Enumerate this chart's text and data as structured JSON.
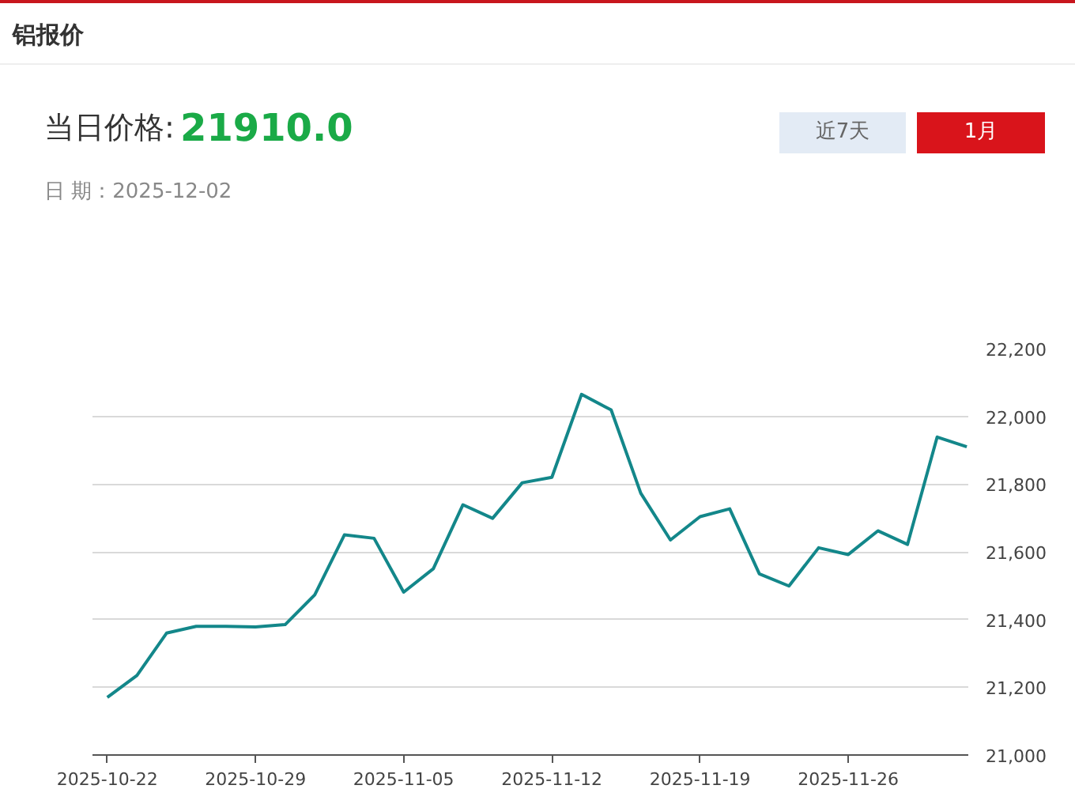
{
  "chart_data": {
    "type": "line",
    "title": "铝报价",
    "annotations": [
      "当日价格:",
      "21910.0",
      "日 期：2025-12-02",
      "近7天",
      "1月"
    ],
    "categories": [
      "2025-10-22",
      null,
      null,
      null,
      null,
      "2025-10-29",
      null,
      null,
      null,
      null,
      "2025-11-05",
      null,
      null,
      null,
      null,
      "2025-11-12",
      null,
      null,
      null,
      null,
      "2025-11-19",
      null,
      null,
      null,
      null,
      "2025-11-26",
      null,
      null,
      null,
      null
    ],
    "series": [
      {
        "color": "#13878a",
        "values": [
          21170,
          21235,
          21360,
          21380,
          21380,
          21378,
          21385,
          21473,
          21650,
          21640,
          21481,
          21550,
          21739,
          21699,
          21804,
          21820,
          22065,
          22019,
          21773,
          21635,
          21704,
          21727,
          21535,
          21499,
          21612,
          21592,
          21662,
          21622,
          21939,
          21910
        ]
      }
    ],
    "ylim": [
      21000,
      22200
    ],
    "yticks": [
      {
        "value": 21000,
        "label": "21,000"
      },
      {
        "value": 21200,
        "label": "21,200"
      },
      {
        "value": 21400,
        "label": "21,400"
      },
      {
        "value": 21600,
        "label": "21,600"
      },
      {
        "value": 21800,
        "label": "21,800"
      },
      {
        "value": 22000,
        "label": "22,000"
      },
      {
        "value": 22200,
        "label": "22,200"
      }
    ],
    "grid": "y"
  }
}
